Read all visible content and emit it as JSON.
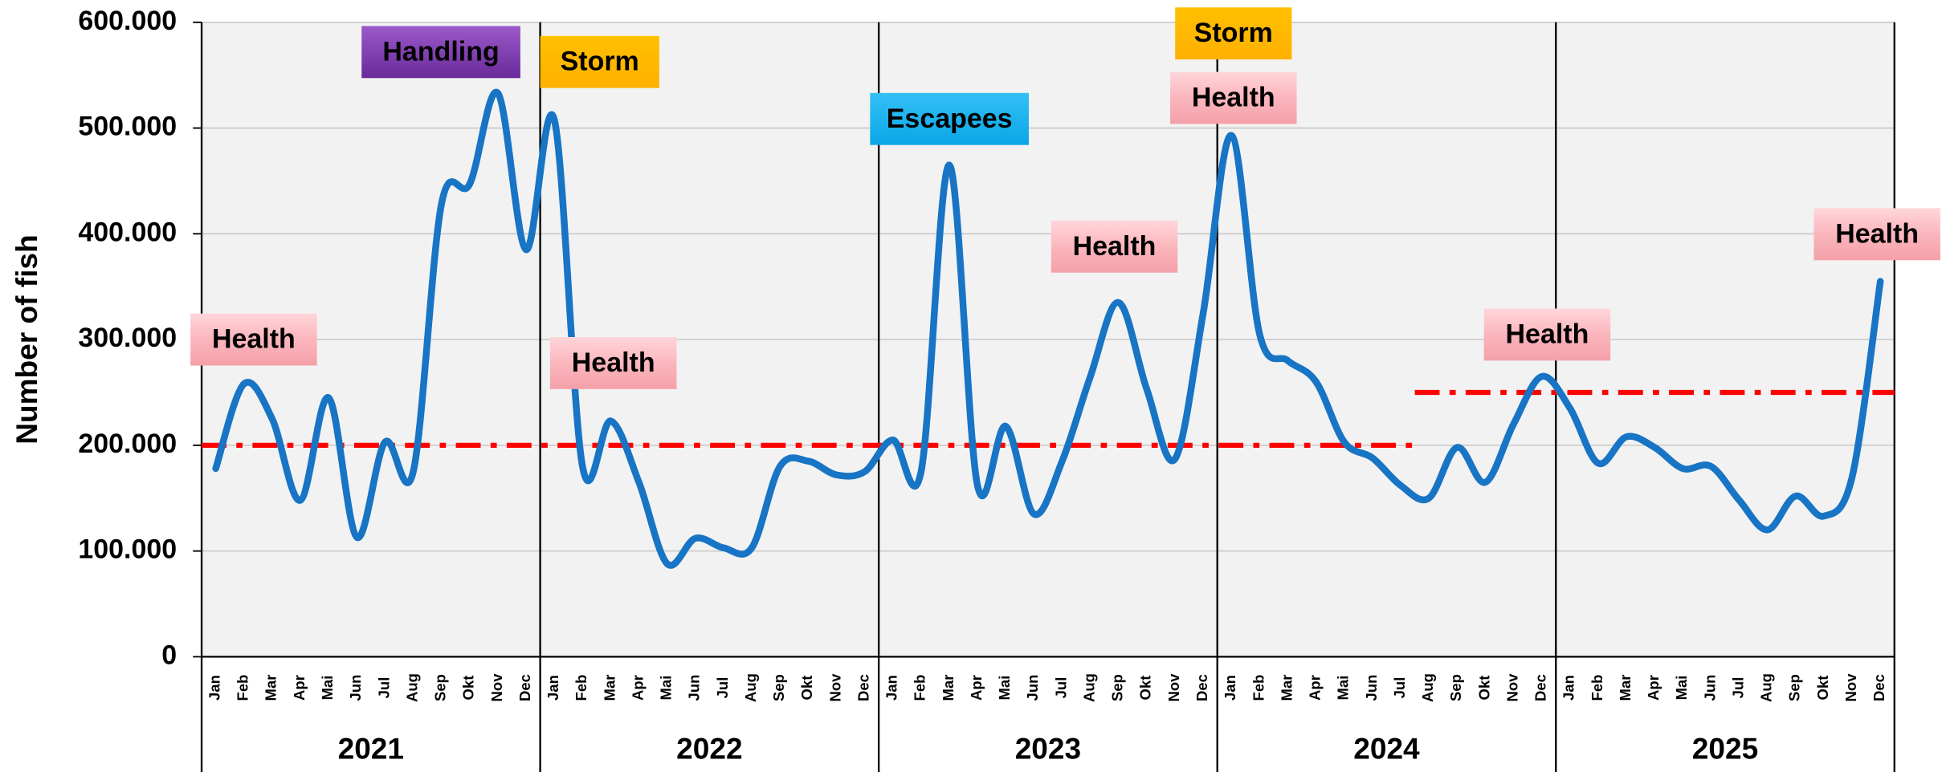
{
  "chart_data": {
    "type": "line",
    "y_label": "Number of fish",
    "categories": [
      "Jan",
      "Feb",
      "Mar",
      "Apr",
      "Mai",
      "Jun",
      "Jul",
      "Aug",
      "Sep",
      "Okt",
      "Nov",
      "Dec",
      "Jan",
      "Feb",
      "Mar",
      "Apr",
      "Mai",
      "Jun",
      "Jul",
      "Aug",
      "Sep",
      "Okt",
      "Nov",
      "Dec",
      "Jan",
      "Feb",
      "Mar",
      "Apr",
      "Mai",
      "Jun",
      "Jul",
      "Aug",
      "Sep",
      "Okt",
      "Nov",
      "Dec",
      "Jan",
      "Feb",
      "Mar",
      "Apr",
      "Mai",
      "Jun",
      "Jul",
      "Aug",
      "Sep",
      "Okt",
      "Nov",
      "Dec",
      "Jan",
      "Feb",
      "Mar",
      "Apr",
      "Mai",
      "Jun",
      "Jul",
      "Aug",
      "Sep",
      "Okt",
      "Nov",
      "Dec"
    ],
    "groups": [
      "2021",
      "2022",
      "2023",
      "2024",
      "2025"
    ],
    "series": [
      {
        "color": "#1874c4",
        "values": [
          178000,
          258000,
          225000,
          148000,
          245000,
          113000,
          203000,
          175000,
          428000,
          447000,
          533000,
          385000,
          508000,
          180000,
          223000,
          165000,
          88000,
          112000,
          103000,
          103000,
          180000,
          185000,
          172000,
          175000,
          205000,
          175000,
          465000,
          162000,
          218000,
          135000,
          185000,
          265000,
          335000,
          253000,
          187000,
          325000,
          493000,
          305000,
          280000,
          260000,
          203000,
          188000,
          162000,
          150000,
          198000,
          165000,
          220000,
          265000,
          235000,
          183000,
          208000,
          198000,
          178000,
          180000,
          148000,
          120000,
          152000,
          133000,
          170000,
          355000
        ]
      }
    ],
    "reference_lines": [
      {
        "value": 200000,
        "color": "#ff0000",
        "start": 0,
        "end": 43
      },
      {
        "value": 250000,
        "color": "#ff0000",
        "start": 43,
        "end": 60
      }
    ],
    "annotations": [
      {
        "text": "Health",
        "color": "pink"
      },
      {
        "text": "Handling",
        "color": "purple"
      },
      {
        "text": "Storm",
        "color": "orange"
      },
      {
        "text": "Health",
        "color": "pink"
      },
      {
        "text": "Escapees",
        "color": "blue"
      },
      {
        "text": "Health",
        "color": "pink"
      },
      {
        "text": "Storm",
        "color": "orange"
      },
      {
        "text": "Health",
        "color": "pink"
      },
      {
        "text": "Health",
        "color": "pink"
      },
      {
        "text": "Health",
        "color": "pink"
      }
    ],
    "ylim": [
      0,
      600000
    ],
    "yticks": [
      {
        "value": 0,
        "label": "0"
      },
      {
        "value": 100000,
        "label": "100.000"
      },
      {
        "value": 200000,
        "label": "200.000"
      },
      {
        "value": 300000,
        "label": "300.000"
      },
      {
        "value": 400000,
        "label": "400.000"
      },
      {
        "value": 500000,
        "label": "500.000"
      },
      {
        "value": 600000,
        "label": "600.000"
      }
    ],
    "grid": true
  }
}
